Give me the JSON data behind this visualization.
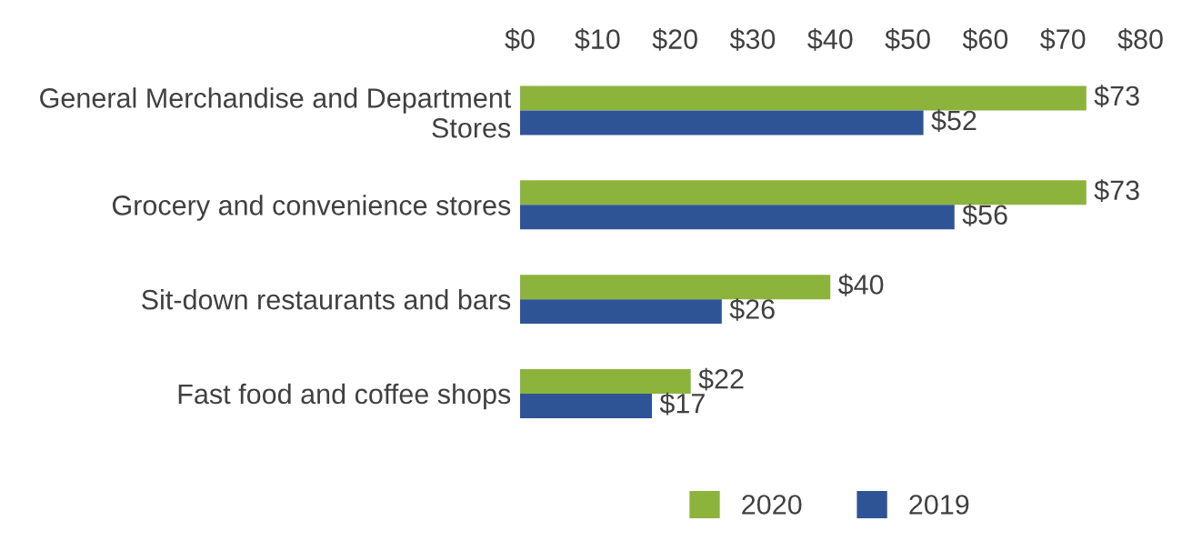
{
  "chart_data": {
    "type": "bar",
    "orientation": "horizontal",
    "categories": [
      "General Merchandise and Department\nStores",
      "Grocery and convenience stores",
      "Sit-down restaurants and bars",
      "Fast food and coffee shops"
    ],
    "series": [
      {
        "name": "2020",
        "color": "#8cb43c",
        "values": [
          73,
          73,
          40,
          22
        ],
        "value_labels": [
          "$73",
          "$73",
          "$40",
          "$22"
        ]
      },
      {
        "name": "2019",
        "color": "#2f5496",
        "values": [
          52,
          56,
          26,
          17
        ],
        "value_labels": [
          "$52",
          "$56",
          "$26",
          "$17"
        ]
      }
    ],
    "xlim": [
      0,
      80
    ],
    "xticks": [
      {
        "value": 0,
        "label": "$0"
      },
      {
        "value": 10,
        "label": "$10"
      },
      {
        "value": 20,
        "label": "$20"
      },
      {
        "value": 30,
        "label": "$30"
      },
      {
        "value": 40,
        "label": "$40"
      },
      {
        "value": 50,
        "label": "$50"
      },
      {
        "value": 60,
        "label": "$60"
      },
      {
        "value": 70,
        "label": "$70"
      },
      {
        "value": 80,
        "label": "$80"
      }
    ],
    "legend": "bottom",
    "grid": false
  }
}
